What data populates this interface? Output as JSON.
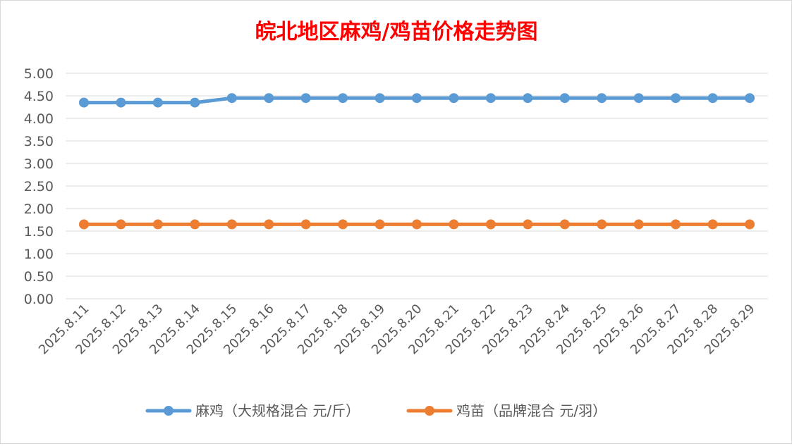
{
  "chart_data": {
    "type": "line",
    "title": "皖北地区麻鸡/鸡苗价格走势图",
    "categories": [
      "2025.8.11",
      "2025.8.12",
      "2025.8.13",
      "2025.8.14",
      "2025.8.15",
      "2025.8.16",
      "2025.8.17",
      "2025.8.18",
      "2025.8.19",
      "2025.8.20",
      "2025.8.21",
      "2025.8.22",
      "2025.8.23",
      "2025.8.24",
      "2025.8.25",
      "2025.8.26",
      "2025.8.27",
      "2025.8.28",
      "2025.8.29"
    ],
    "y_ticks": [
      "0.00",
      "0.50",
      "1.00",
      "1.50",
      "2.00",
      "2.50",
      "3.00",
      "3.50",
      "4.00",
      "4.50",
      "5.00"
    ],
    "ylim": [
      0,
      5
    ],
    "grid": true,
    "legend_position": "bottom",
    "series": [
      {
        "name": "麻鸡（大规格混合 元/斤）",
        "color": "#5b9bd5",
        "values": [
          4.35,
          4.35,
          4.35,
          4.35,
          4.45,
          4.45,
          4.45,
          4.45,
          4.45,
          4.45,
          4.45,
          4.45,
          4.45,
          4.45,
          4.45,
          4.45,
          4.45,
          4.45,
          4.45
        ]
      },
      {
        "name": "鸡苗（品牌混合 元/羽）",
        "color": "#ed7d31",
        "values": [
          1.65,
          1.65,
          1.65,
          1.65,
          1.65,
          1.65,
          1.65,
          1.65,
          1.65,
          1.65,
          1.65,
          1.65,
          1.65,
          1.65,
          1.65,
          1.65,
          1.65,
          1.65,
          1.65
        ]
      }
    ],
    "title_color": "#ff0000",
    "grid_color": "#d9d9d9",
    "tick_color": "#595959"
  }
}
